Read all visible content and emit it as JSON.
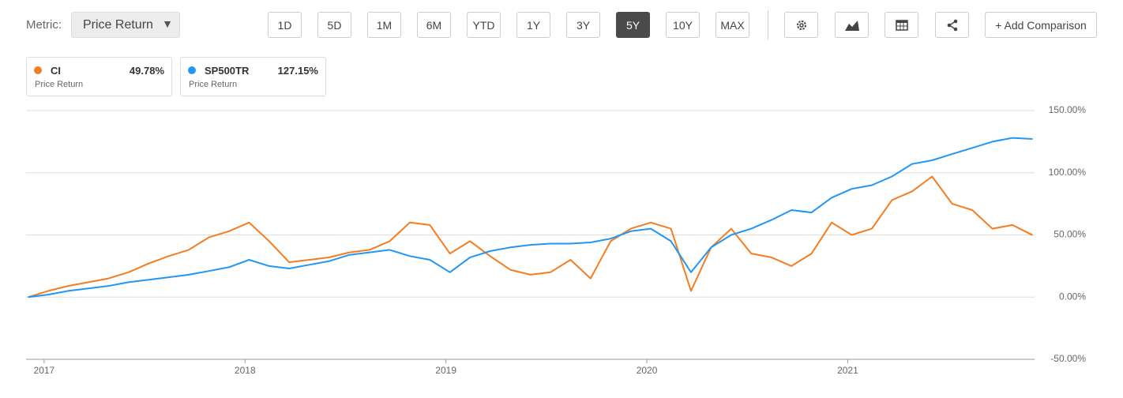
{
  "toolbar": {
    "metric_label": "Metric:",
    "metric_value": "Price Return",
    "ranges": [
      "1D",
      "5D",
      "1M",
      "6M",
      "YTD",
      "1Y",
      "3Y",
      "5Y",
      "10Y",
      "MAX"
    ],
    "active_range": "5Y",
    "add_comparison": "+ Add Comparison"
  },
  "chart_data": {
    "type": "line",
    "x": [
      2016.92,
      2017.02,
      2017.12,
      2017.22,
      2017.32,
      2017.42,
      2017.52,
      2017.62,
      2017.72,
      2017.82,
      2017.92,
      2018.02,
      2018.12,
      2018.22,
      2018.32,
      2018.42,
      2018.52,
      2018.62,
      2018.72,
      2018.82,
      2018.92,
      2019.02,
      2019.12,
      2019.22,
      2019.32,
      2019.42,
      2019.52,
      2019.62,
      2019.72,
      2019.82,
      2019.92,
      2020.02,
      2020.12,
      2020.22,
      2020.32,
      2020.42,
      2020.52,
      2020.62,
      2020.72,
      2020.82,
      2020.92,
      2021.02,
      2021.12,
      2021.22,
      2021.32,
      2021.42,
      2021.52,
      2021.62,
      2021.72,
      2021.82,
      2021.92
    ],
    "series": [
      {
        "name": "CI",
        "caption": "Price Return",
        "return_label": "49.78%",
        "color": "#f57c1f",
        "values": [
          0,
          5,
          9,
          12,
          15,
          20,
          27,
          33,
          38,
          48,
          53,
          60,
          45,
          28,
          30,
          32,
          36,
          38,
          45,
          60,
          58,
          35,
          45,
          33,
          22,
          18,
          20,
          30,
          15,
          45,
          55,
          60,
          55,
          5,
          40,
          55,
          35,
          32,
          25,
          35,
          60,
          50,
          55,
          78,
          85,
          97,
          75,
          70,
          55,
          58,
          49.78
        ]
      },
      {
        "name": "SP500TR",
        "caption": "Price Return",
        "return_label": "127.15%",
        "color": "#2196f3",
        "values": [
          0,
          2,
          5,
          7,
          9,
          12,
          14,
          16,
          18,
          21,
          24,
          30,
          25,
          23,
          26,
          29,
          34,
          36,
          38,
          33,
          30,
          20,
          32,
          37,
          40,
          42,
          43,
          43,
          44,
          47,
          53,
          55,
          45,
          20,
          40,
          50,
          55,
          62,
          70,
          68,
          80,
          87,
          90,
          97,
          107,
          110,
          115,
          120,
          125,
          128,
          127.15
        ]
      }
    ],
    "xlim": [
      2016.91,
      2021.93
    ],
    "xticks": [
      2017,
      2018,
      2019,
      2020,
      2021
    ],
    "ylim": [
      -50,
      150
    ],
    "yticks": [
      {
        "value": -50,
        "label": "-50.00%"
      },
      {
        "value": 0,
        "label": "0.00%"
      },
      {
        "value": 50,
        "label": "50.00%"
      },
      {
        "value": 100,
        "label": "100.00%"
      },
      {
        "value": 150,
        "label": "150.00%"
      }
    ],
    "grid": true
  }
}
